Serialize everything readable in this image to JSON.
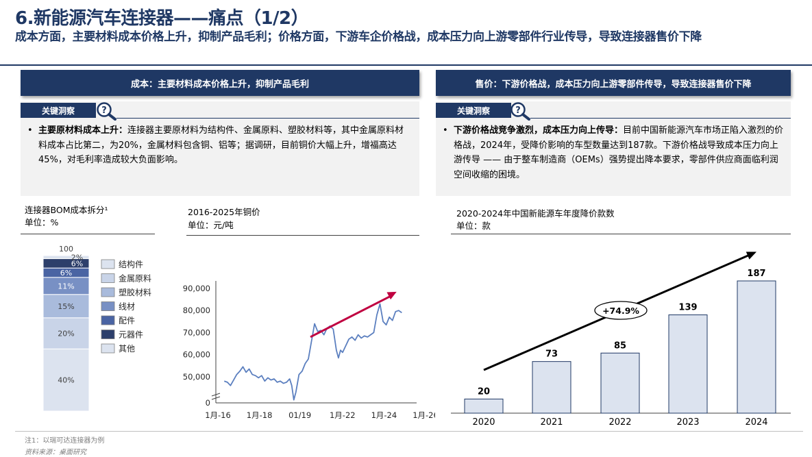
{
  "header": {
    "title": "6.新能源汽车连接器——痛点（1/2）",
    "subtitle": "成本方面，主要材料成本价格上升，抑制产品毛利；价格方面，下游车企价格战，成本压力向上游零部件行业传导，导致连接器售价下降"
  },
  "left": {
    "banner": "成本：主要材料成本价格上升，抑制产品毛利",
    "tag": "关键洞察",
    "bullet_lead": "主要原材料成本上升：",
    "bullet_text": "连接器主要原材料为结构件、金属原料、塑胶材料等，其中金属原料材料成本占比第二，为20%，金属材料包含铜、铝等；据调研，目前铜价大幅上升，增福高达45%，对毛利率造成较大负面影响。"
  },
  "right": {
    "banner": "售价：下游价格战，成本压力向上游零部件传导，导致连接器售价下降",
    "tag": "关键洞察",
    "bullet_lead": "下游价格战竞争激烈，成本压力向上传导：",
    "bullet_text": "目前中国新能源汽车市场正陷入激烈的价格战，2024年，受降价影响的车型数量达到187款。下游价格战导致成本压力向上游传导 —— 由于整车制造商（OEMs）强势提出降本要求，零部件供应商面临利润空间收缩的困境。"
  },
  "colors": {
    "navy": "#1f3864",
    "panel": "#f2f2f2",
    "arrow_red": "#c00040",
    "line_blue": "#5b7fbf",
    "bar_fill": "#dce3ef"
  },
  "chart_data": [
    {
      "type": "bar",
      "stacked": true,
      "title": "连接器BOM成本拆分¹",
      "unit": "单位：%",
      "total_label": "100",
      "categories": [
        ""
      ],
      "series": [
        {
          "name": "结构件",
          "values": [
            40
          ],
          "color": "#dce3ef"
        },
        {
          "name": "金属原料",
          "values": [
            20
          ],
          "color": "#c9d4e8"
        },
        {
          "name": "塑胶材料",
          "values": [
            15
          ],
          "color": "#a9bbdc"
        },
        {
          "name": "线材",
          "values": [
            11
          ],
          "color": "#7890c4"
        },
        {
          "name": "配件",
          "values": [
            6
          ],
          "color": "#4a64a3"
        },
        {
          "name": "元器件",
          "values": [
            6
          ],
          "color": "#2d3f6b"
        },
        {
          "name": "其他",
          "values": [
            2
          ],
          "color": "#dce3ef"
        }
      ],
      "labels": [
        "40%",
        "20%",
        "15%",
        "11%",
        "6%",
        "6%",
        "2%"
      ],
      "ylim": [
        0,
        100
      ],
      "legend": "right"
    },
    {
      "type": "line",
      "title": "2016-2025年铜价",
      "unit": "单位：元/吨",
      "xticks": [
        "1月-16",
        "1月-18",
        "01/19",
        "1月-22",
        "1月-24",
        "1月-26"
      ],
      "yticks": [
        "0",
        "50,000",
        "60,000",
        "70,000",
        "80,000",
        "90,000"
      ],
      "ylim": [
        40000,
        90000
      ],
      "axis_break": true,
      "x": [
        2016.9,
        2017.05,
        2017.2,
        2017.35,
        2017.5,
        2017.65,
        2017.8,
        2017.95,
        2018.1,
        2018.25,
        2018.4,
        2018.55,
        2018.7,
        2018.85,
        2019.0,
        2019.15,
        2019.3,
        2019.45,
        2019.6,
        2019.75,
        2019.9,
        2020.05,
        2020.15,
        2020.25,
        2020.35,
        2020.5,
        2020.65,
        2020.8,
        2020.95,
        2021.1,
        2021.25,
        2021.4,
        2021.55,
        2021.7,
        2021.85,
        2022.0,
        2022.15,
        2022.3,
        2022.4,
        2022.5,
        2022.6,
        2022.75,
        2022.9,
        2023.05,
        2023.2,
        2023.35,
        2023.5,
        2023.65,
        2023.8,
        2023.95,
        2024.1,
        2024.25,
        2024.4,
        2024.55,
        2024.7,
        2024.85,
        2025.0,
        2025.15,
        2025.3,
        2025.45
      ],
      "values": [
        48000,
        47500,
        46000,
        48500,
        51000,
        52500,
        54500,
        52000,
        53500,
        51000,
        50500,
        49500,
        50500,
        48000,
        49500,
        48500,
        49000,
        47500,
        48000,
        47000,
        47500,
        49000,
        46000,
        39500,
        43000,
        51000,
        52500,
        56000,
        58000,
        66000,
        74000,
        70500,
        71000,
        69000,
        72000,
        73000,
        71500,
        62000,
        58500,
        62000,
        61000,
        64000,
        67000,
        68000,
        66500,
        69000,
        67500,
        68500,
        68000,
        69000,
        70000,
        78000,
        83000,
        75000,
        73500,
        77000,
        75500,
        79500,
        80000,
        79000
      ],
      "trend_arrow": {
        "from": [
          2021.05,
          68000
        ],
        "to": [
          2025.2,
          88500
        ]
      }
    },
    {
      "type": "bar",
      "title": "2020-2024年中国新能源车年度降价款数",
      "unit": "单位：款",
      "categories": [
        "2020",
        "2021",
        "2022",
        "2023",
        "2024"
      ],
      "values": [
        20,
        73,
        85,
        139,
        187
      ],
      "ylim": [
        0,
        200
      ],
      "cagr_label": "+74.9%"
    }
  ],
  "footer": {
    "note": "注1：以瑞可达连接器为例",
    "source": "资料来源：桌面研究"
  }
}
